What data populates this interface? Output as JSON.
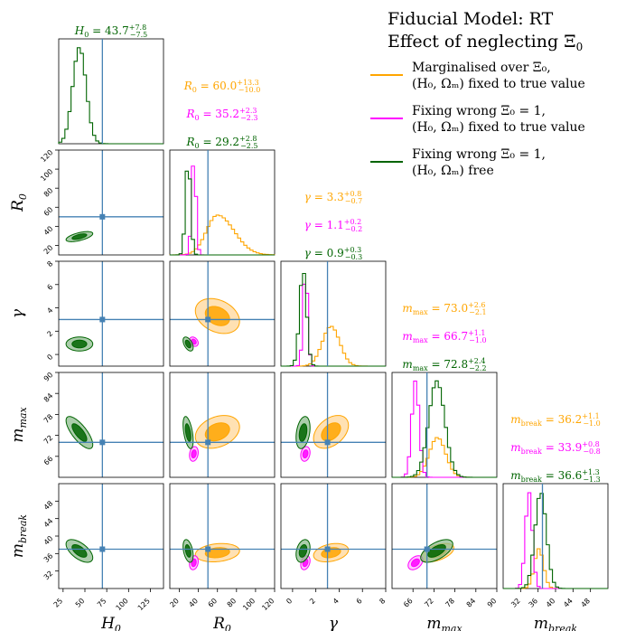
{
  "title": {
    "line1": "Fiducial Model: RT",
    "line2": "Effect of neglecting Ξ",
    "line2_sub": "0"
  },
  "colors": {
    "orange": "#FFA500",
    "orange_fill": "#FFD79A",
    "magenta": "#FF00FF",
    "magenta_fill": "#FFB0FF",
    "green": "#006400",
    "green_fill": "#8FBC8F",
    "truth": "#4682B4",
    "axis": "#000000"
  },
  "legend": [
    {
      "line1": "Marginalised over Ξ₀,",
      "line2": "(H₀, Ωₘ) fixed to true value",
      "color": "orange"
    },
    {
      "line1": "Fixing wrong Ξ₀ = 1,",
      "line2": "(H₀, Ωₘ) fixed to true value",
      "color": "magenta"
    },
    {
      "line1": "Fixing wrong Ξ₀ = 1,",
      "line2": "(H₀, Ωₘ) free",
      "color": "green"
    }
  ],
  "chart_data": {
    "type": "corner",
    "parameters": [
      {
        "key": "H0",
        "label": "H",
        "sub": "0",
        "range": [
          20,
          140
        ],
        "ticks": [
          25,
          50,
          75,
          100,
          125
        ],
        "truth": 70
      },
      {
        "key": "R0",
        "label": "R",
        "sub": "0",
        "range": [
          10,
          120
        ],
        "ticks": [
          20,
          40,
          60,
          80,
          100,
          120
        ],
        "truth": 50
      },
      {
        "key": "gamma",
        "label": "γ",
        "sub": "",
        "range": [
          -1,
          8
        ],
        "ticks": [
          0,
          2,
          4,
          6,
          8
        ],
        "truth": 3
      },
      {
        "key": "mmax",
        "label": "m",
        "sub": "max",
        "range": [
          60,
          90
        ],
        "ticks": [
          66,
          72,
          78,
          84,
          90
        ],
        "truth": 70
      },
      {
        "key": "mbreak",
        "label": "m",
        "sub": "break",
        "range": [
          28,
          52
        ],
        "ticks": [
          32,
          36,
          40,
          44,
          48
        ],
        "truth": 37
      }
    ],
    "y_axis_ticks": {
      "R0": [
        20,
        40,
        60,
        80,
        100,
        120
      ],
      "gamma": [
        0,
        2,
        4,
        6,
        8
      ],
      "mmax": [
        66,
        72,
        78,
        84,
        90
      ],
      "mbreak": [
        32,
        36,
        40,
        44,
        48
      ]
    },
    "diag_titles": [
      [
        {
          "series": "green",
          "sym": "H",
          "sub": "0",
          "val": "43.7",
          "plus": "+7.8",
          "minus": "−7.5"
        }
      ],
      [
        {
          "series": "orange",
          "sym": "R",
          "sub": "0",
          "val": "60.0",
          "plus": "+13.3",
          "minus": "−10.0"
        },
        {
          "series": "magenta",
          "sym": "R",
          "sub": "0",
          "val": "35.2",
          "plus": "+2.3",
          "minus": "−2.3"
        },
        {
          "series": "green",
          "sym": "R",
          "sub": "0",
          "val": "29.2",
          "plus": "+2.8",
          "minus": "−2.5"
        }
      ],
      [
        {
          "series": "orange",
          "sym": "γ",
          "sub": "",
          "val": "3.3",
          "plus": "+0.8",
          "minus": "−0.7"
        },
        {
          "series": "magenta",
          "sym": "γ",
          "sub": "",
          "val": "1.1",
          "plus": "+0.2",
          "minus": "−0.2"
        },
        {
          "series": "green",
          "sym": "γ",
          "sub": "",
          "val": "0.9",
          "plus": "+0.3",
          "minus": "−0.3"
        }
      ],
      [
        {
          "series": "orange",
          "sym": "m",
          "sub": "max",
          "val": "73.0",
          "plus": "+2.6",
          "minus": "−2.1"
        },
        {
          "series": "magenta",
          "sym": "m",
          "sub": "max",
          "val": "66.7",
          "plus": "+1.1",
          "minus": "−1.0"
        },
        {
          "series": "green",
          "sym": "m",
          "sub": "max",
          "val": "72.8",
          "plus": "+2.4",
          "minus": "−2.2"
        }
      ],
      [
        {
          "series": "orange",
          "sym": "m",
          "sub": "break",
          "val": "36.2",
          "plus": "+1.1",
          "minus": "−1.0"
        },
        {
          "series": "magenta",
          "sym": "m",
          "sub": "break",
          "val": "33.9",
          "plus": "+0.8",
          "minus": "−0.8"
        },
        {
          "series": "green",
          "sym": "m",
          "sub": "break",
          "val": "36.6",
          "plus": "+1.3",
          "minus": "−1.3"
        }
      ]
    ],
    "posteriors": {
      "orange": {
        "H0": null,
        "R0": [
          60.0,
          11.6
        ],
        "gamma": [
          3.3,
          0.75
        ],
        "mmax": [
          73.0,
          2.35
        ],
        "mbreak": [
          36.2,
          1.05
        ]
      },
      "magenta": {
        "H0": null,
        "R0": [
          35.2,
          2.3
        ],
        "gamma": [
          1.1,
          0.2
        ],
        "mmax": [
          66.7,
          1.05
        ],
        "mbreak": [
          33.9,
          0.8
        ]
      },
      "green": {
        "H0": [
          43.7,
          7.65
        ],
        "R0": [
          29.2,
          2.65
        ],
        "gamma": [
          0.9,
          0.3
        ],
        "mmax": [
          72.8,
          2.3
        ],
        "mbreak": [
          36.6,
          1.3
        ]
      }
    },
    "correlations": {
      "green": {
        "H0|R0": 0.6,
        "H0|gamma": 0.0,
        "H0|mmax": -0.75,
        "H0|mbreak": -0.6,
        "R0|gamma": -0.5,
        "R0|mmax": -0.5,
        "R0|mbreak": -0.4,
        "gamma|mmax": 0.3,
        "gamma|mbreak": 0.3,
        "mmax|mbreak": 0.6
      },
      "orange": {
        "R0|gamma": -0.3,
        "R0|mmax": 0.3,
        "R0|mbreak": 0.2,
        "gamma|mmax": 0.4,
        "gamma|mbreak": 0.3,
        "mmax|mbreak": 0.5
      },
      "magenta": {
        "R0|gamma": -0.3,
        "R0|mmax": 0.2,
        "R0|mbreak": 0.2,
        "gamma|mmax": 0.2,
        "gamma|mbreak": 0.3,
        "mmax|mbreak": 0.4
      }
    },
    "levels_sigma": [
      1,
      2
    ]
  }
}
